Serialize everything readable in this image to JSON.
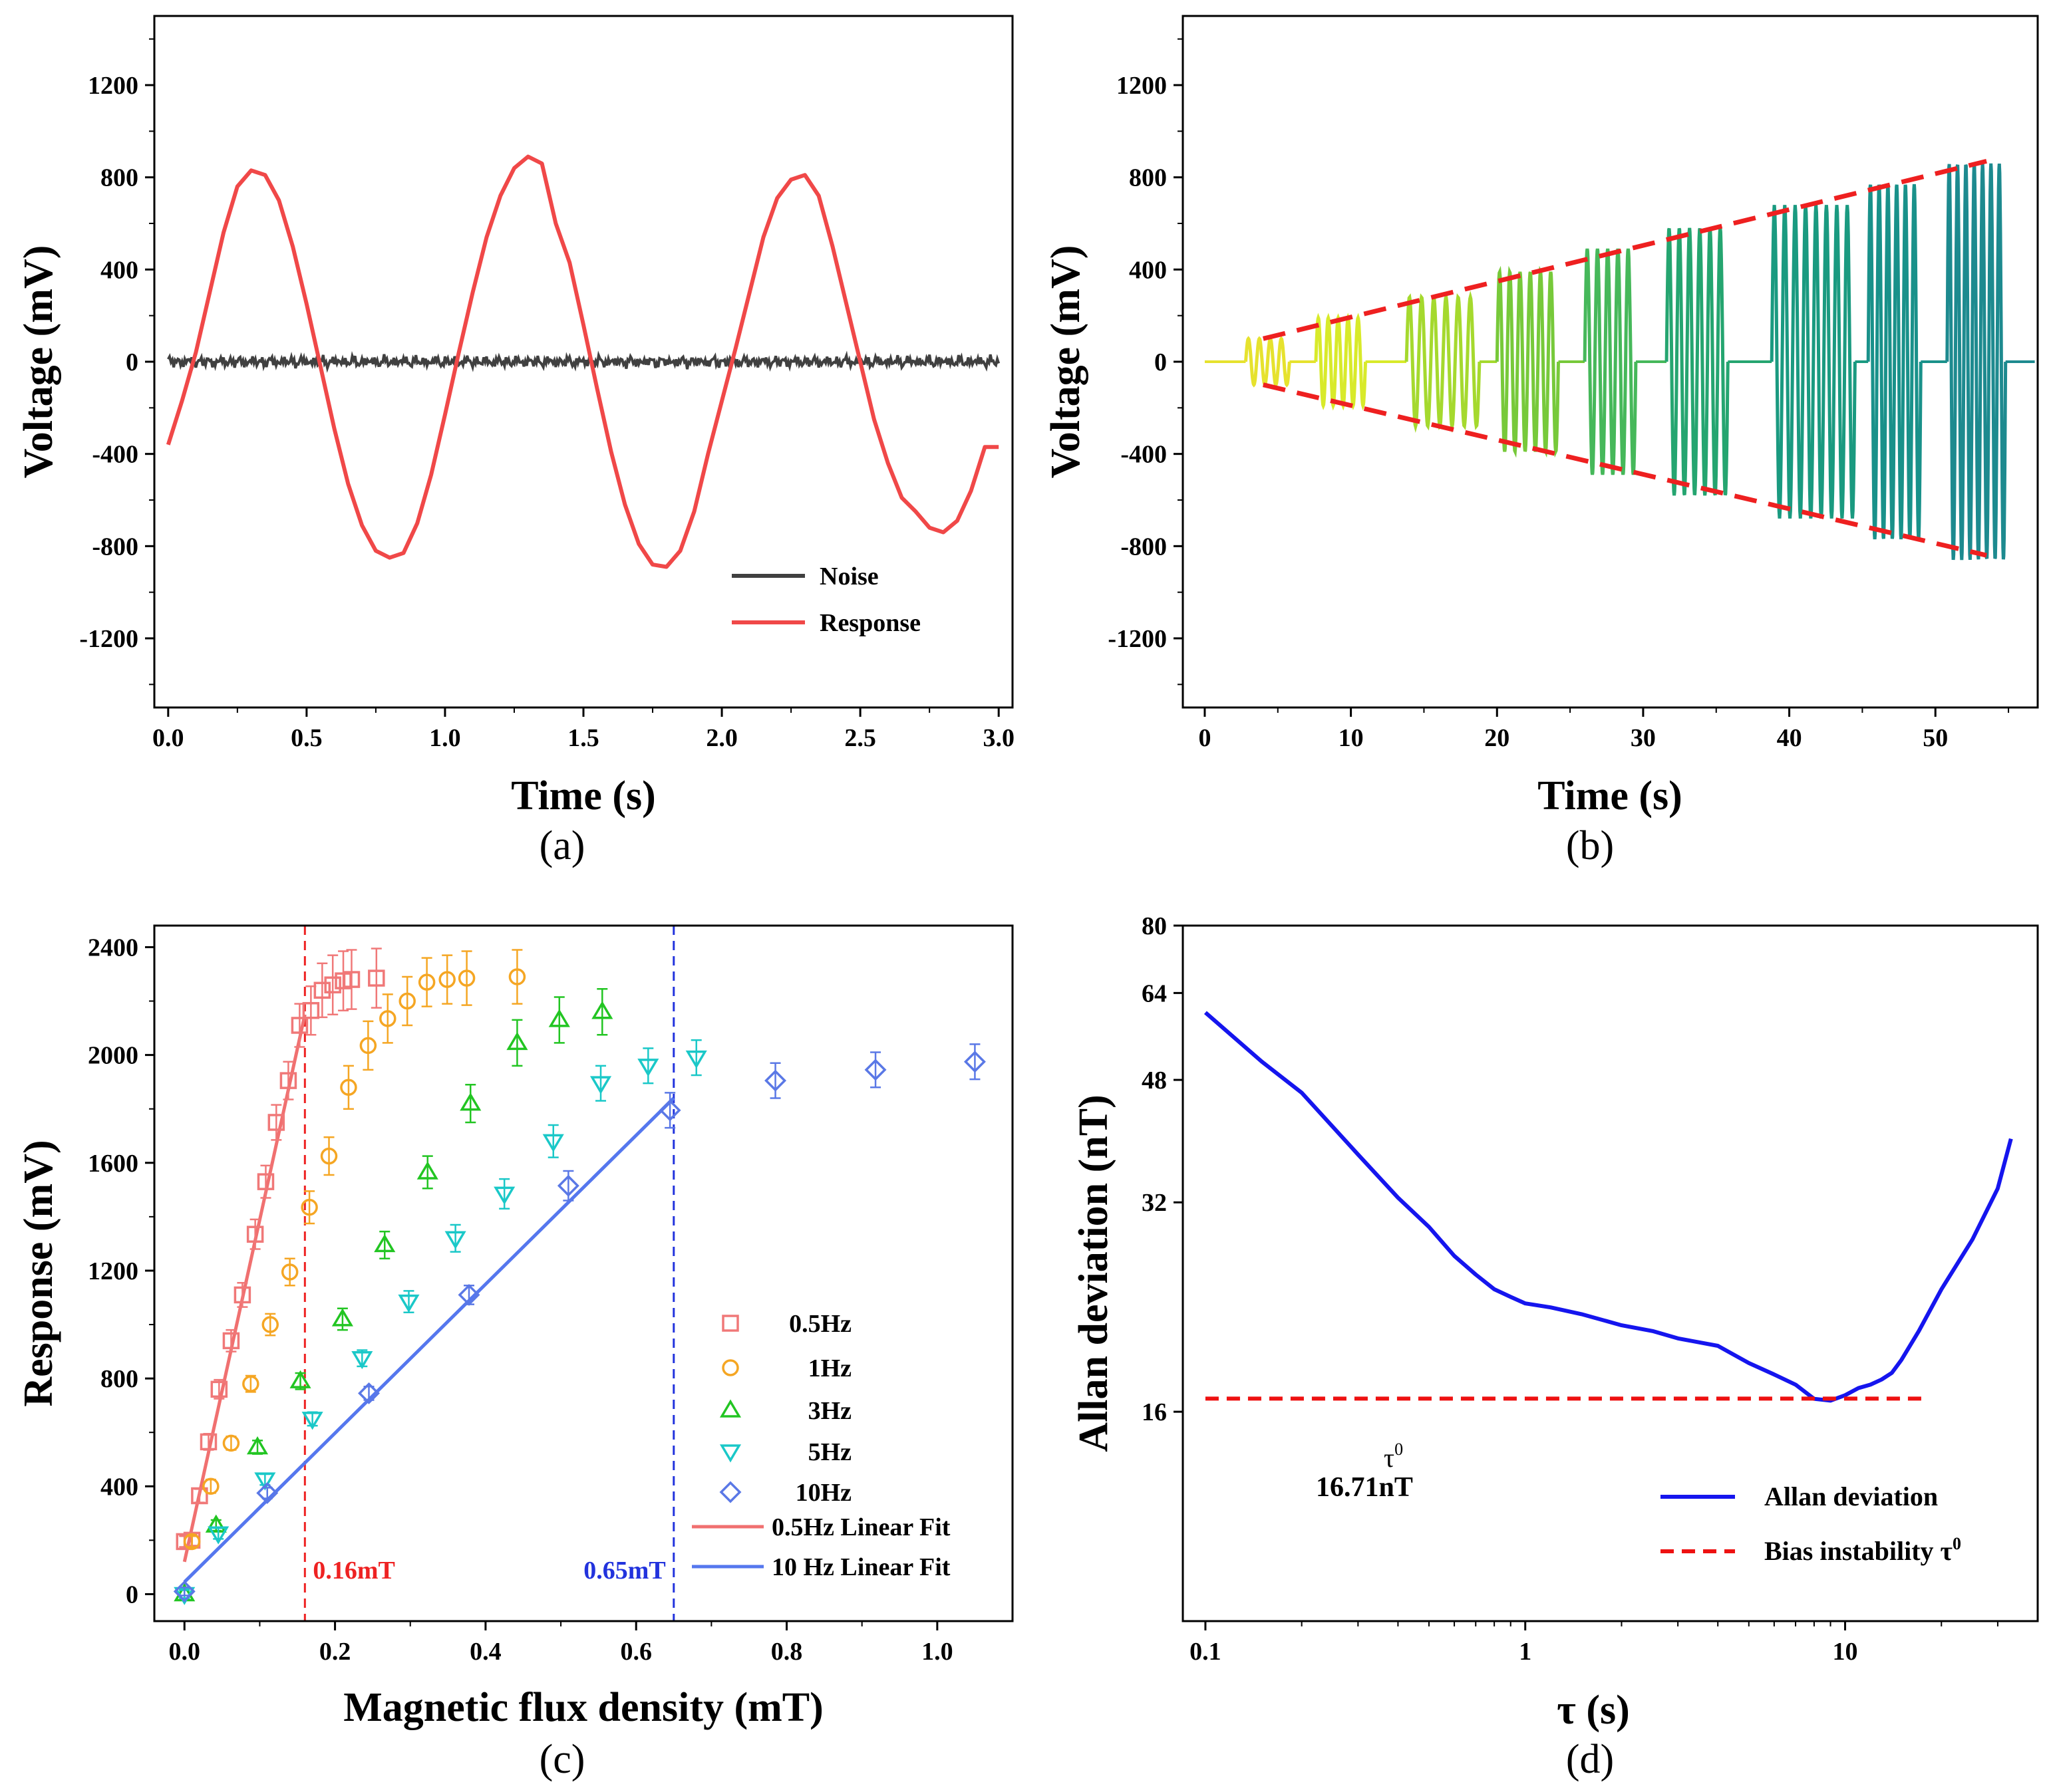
{
  "chart_data": [
    {
      "id": "a",
      "type": "line",
      "panel_label": "(a)",
      "xlabel": "Time (s)",
      "ylabel": "Voltage (mV)",
      "xlim": [
        -0.05,
        3.05
      ],
      "ylim": [
        -1500,
        1500
      ],
      "xticks": [
        0.0,
        0.5,
        1.0,
        1.5,
        2.0,
        2.5,
        3.0
      ],
      "xtick_labels": [
        "0.0",
        "0.5",
        "1.0",
        "1.5",
        "2.0",
        "2.5",
        "3.0"
      ],
      "yticks": [
        -1200,
        -800,
        -400,
        0,
        400,
        800,
        1200
      ],
      "ytick_labels": [
        "-1200",
        "-800",
        "-400",
        "0",
        "400",
        "800",
        "1200"
      ],
      "series": [
        {
          "name": "Noise",
          "color": "#404040",
          "kind": "noise",
          "amplitude_mV": 25
        },
        {
          "name": "Response",
          "color": "#f04848",
          "x": [
            0.0,
            0.05,
            0.1,
            0.15,
            0.2,
            0.25,
            0.3,
            0.35,
            0.4,
            0.45,
            0.5,
            0.55,
            0.6,
            0.65,
            0.7,
            0.75,
            0.8,
            0.85,
            0.9,
            0.95,
            1.0,
            1.05,
            1.1,
            1.15,
            1.2,
            1.25,
            1.3,
            1.35,
            1.4,
            1.45,
            1.5,
            1.55,
            1.6,
            1.65,
            1.7,
            1.75,
            1.8,
            1.85,
            1.9,
            1.95,
            2.0,
            2.05,
            2.1,
            2.15,
            2.2,
            2.25,
            2.3,
            2.35,
            2.4,
            2.45,
            2.5,
            2.55,
            2.6,
            2.65,
            2.7,
            2.75,
            2.8,
            2.85,
            2.9,
            2.95,
            3.0
          ],
          "y": [
            -360,
            -170,
            40,
            300,
            560,
            760,
            830,
            810,
            700,
            500,
            250,
            -20,
            -290,
            -530,
            -710,
            -820,
            -850,
            -830,
            -700,
            -490,
            -230,
            40,
            300,
            540,
            720,
            840,
            890,
            860,
            600,
            430,
            160,
            -120,
            -390,
            -620,
            -790,
            -880,
            -890,
            -820,
            -650,
            -400,
            -170,
            60,
            300,
            540,
            710,
            790,
            810,
            720,
            500,
            250,
            0,
            -250,
            -440,
            -590,
            -650,
            -720,
            -740,
            -690,
            -560,
            -370,
            -370
          ]
        }
      ],
      "legend": {
        "position": "bottom-right",
        "entries": [
          "Noise",
          "Response"
        ]
      }
    },
    {
      "id": "b",
      "type": "line",
      "panel_label": "(b)",
      "xlabel": "Time (s)",
      "ylabel": "Voltage (mV)",
      "xlim": [
        -1.5,
        57
      ],
      "ylim": [
        -1500,
        1500
      ],
      "xticks": [
        0,
        10,
        20,
        30,
        40,
        50
      ],
      "xtick_labels": [
        "0",
        "10",
        "20",
        "30",
        "40",
        "50"
      ],
      "yticks": [
        -1200,
        -800,
        -400,
        0,
        400,
        800,
        1200
      ],
      "ytick_labels": [
        "-1200",
        "-800",
        "-400",
        "0",
        "400",
        "800",
        "1200"
      ],
      "bursts": [
        {
          "start": 2.8,
          "end": 5.8,
          "amplitude": 100,
          "cycles": 4,
          "color": "#e6e22e"
        },
        {
          "start": 7.6,
          "end": 11.0,
          "amplitude": 190,
          "cycles": 5,
          "color": "#d8ea2a"
        },
        {
          "start": 13.8,
          "end": 18.8,
          "amplitude": 280,
          "cycles": 6,
          "color": "#a5d92e"
        },
        {
          "start": 20.0,
          "end": 24.2,
          "amplitude": 390,
          "cycles": 6,
          "color": "#77c93a"
        },
        {
          "start": 26.0,
          "end": 29.5,
          "amplitude": 490,
          "cycles": 5,
          "color": "#46b85a"
        },
        {
          "start": 31.6,
          "end": 35.8,
          "amplitude": 580,
          "cycles": 6,
          "color": "#25a570"
        },
        {
          "start": 38.8,
          "end": 44.5,
          "amplitude": 680,
          "cycles": 8,
          "color": "#1a9a80"
        },
        {
          "start": 45.4,
          "end": 49.0,
          "amplitude": 770,
          "cycles": 6,
          "color": "#19918a"
        },
        {
          "start": 50.8,
          "end": 54.8,
          "amplitude": 860,
          "cycles": 7,
          "color": "#1d8a8f"
        }
      ],
      "envelope": {
        "color": "#ee2020",
        "x": [
          4.0,
          53.5
        ],
        "upper": [
          100,
          870
        ],
        "lower": [
          -100,
          -840
        ]
      }
    },
    {
      "id": "c",
      "type": "scatter",
      "panel_label": "(c)",
      "xlabel": "Magnetic flux density (mT)",
      "ylabel": "Response (mV)",
      "xlim": [
        -0.04,
        1.1
      ],
      "ylim": [
        -100,
        2480
      ],
      "xticks": [
        0.0,
        0.2,
        0.4,
        0.6,
        0.8,
        1.0
      ],
      "xtick_labels": [
        "0.0",
        "0.2",
        "0.4",
        "0.6",
        "0.8",
        "1.0"
      ],
      "yticks": [
        0,
        400,
        800,
        1200,
        1600,
        2000,
        2400
      ],
      "ytick_labels": [
        "0",
        "400",
        "800",
        "1200",
        "1600",
        "2000",
        "2400"
      ],
      "series": [
        {
          "name": "0.5Hz",
          "marker": "square",
          "color": "#f07878",
          "x": [
            0.0,
            0.01,
            0.02,
            0.032,
            0.046,
            0.062,
            0.077,
            0.094,
            0.108,
            0.122,
            0.138,
            0.153,
            0.168,
            0.183,
            0.197,
            0.211,
            0.222,
            0.255
          ],
          "y": [
            195,
            200,
            365,
            565,
            760,
            940,
            1110,
            1335,
            1530,
            1750,
            1905,
            2110,
            2165,
            2240,
            2260,
            2275,
            2280,
            2285
          ],
          "err": [
            20,
            20,
            25,
            30,
            35,
            40,
            45,
            55,
            60,
            65,
            70,
            80,
            90,
            100,
            110,
            110,
            110,
            110
          ]
        },
        {
          "name": "1Hz",
          "marker": "circle",
          "color": "#f5a623",
          "x": [
            0.01,
            0.035,
            0.062,
            0.088,
            0.114,
            0.14,
            0.166,
            0.192,
            0.218,
            0.244,
            0.27,
            0.296,
            0.322,
            0.349,
            0.375,
            0.442
          ],
          "y": [
            195,
            400,
            560,
            780,
            1000,
            1195,
            1435,
            1625,
            1880,
            2035,
            2135,
            2200,
            2270,
            2280,
            2285,
            2290
          ],
          "err": [
            20,
            25,
            25,
            30,
            40,
            50,
            60,
            70,
            80,
            90,
            90,
            90,
            90,
            90,
            100,
            100
          ]
        },
        {
          "name": "3Hz",
          "marker": "triangle-up",
          "color": "#22c522",
          "x": [
            0.0,
            0.042,
            0.097,
            0.154,
            0.21,
            0.266,
            0.323,
            0.38,
            0.442,
            0.498,
            0.555
          ],
          "y": [
            0,
            255,
            545,
            790,
            1020,
            1295,
            1565,
            1820,
            2045,
            2130,
            2160
          ],
          "err": [
            15,
            20,
            25,
            30,
            40,
            50,
            60,
            70,
            85,
            85,
            85
          ]
        },
        {
          "name": "5Hz",
          "marker": "triangle-down",
          "color": "#1ac8c8",
          "x": [
            0.0,
            0.045,
            0.107,
            0.17,
            0.236,
            0.298,
            0.36,
            0.425,
            0.49,
            0.553,
            0.616,
            0.68
          ],
          "y": [
            0,
            225,
            425,
            650,
            875,
            1085,
            1320,
            1485,
            1680,
            1895,
            1960,
            1990
          ],
          "err": [
            15,
            20,
            20,
            25,
            30,
            40,
            50,
            55,
            60,
            65,
            65,
            65
          ]
        },
        {
          "name": "10Hz",
          "marker": "diamond",
          "color": "#5a78e6",
          "x": [
            0.0,
            0.11,
            0.245,
            0.378,
            0.51,
            0.645,
            0.785,
            0.918,
            1.05
          ],
          "y": [
            10,
            375,
            745,
            1110,
            1515,
            1795,
            1905,
            1945,
            1975
          ],
          "err": [
            15,
            20,
            25,
            35,
            55,
            65,
            65,
            65,
            65
          ]
        }
      ],
      "fits": [
        {
          "name": "0.5Hz Linear Fit",
          "color": "#f07070",
          "x": [
            0.0,
            0.16
          ],
          "y": [
            120,
            2150
          ]
        },
        {
          "name": "10 Hz Linear Fit",
          "color": "#5577ee",
          "x": [
            0.0,
            0.65
          ],
          "y": [
            45,
            1840
          ]
        }
      ],
      "vlines": [
        {
          "x": 0.16,
          "color": "#ee2222",
          "label": "0.16mT"
        },
        {
          "x": 0.65,
          "color": "#2233dd",
          "label": "0.65mT"
        }
      ],
      "legend": {
        "position": "bottom-right",
        "entries": [
          "0.5Hz",
          "1Hz",
          "3Hz",
          "5Hz",
          "10Hz",
          "0.5Hz Linear Fit",
          "10 Hz Linear Fit"
        ]
      }
    },
    {
      "id": "d",
      "type": "line",
      "panel_label": "(d)",
      "xlabel": "τ (s)",
      "ylabel": "Allan deviation (nT)",
      "xscale": "log",
      "yscale": "log",
      "xlim": [
        0.085,
        40
      ],
      "ylim": [
        8,
        80
      ],
      "xticks": [
        0.1,
        1,
        10
      ],
      "xtick_labels": [
        "0.1",
        "1",
        "10"
      ],
      "yticks": [
        16,
        32,
        48,
        64,
        80
      ],
      "ytick_labels": [
        "16",
        "32",
        "48",
        "64",
        "80"
      ],
      "series": [
        {
          "name": "Allan deviation",
          "color": "#1515ee",
          "x": [
            0.1,
            0.15,
            0.2,
            0.3,
            0.4,
            0.5,
            0.6,
            0.7,
            0.8,
            0.9,
            1.0,
            1.2,
            1.5,
            2.0,
            2.5,
            3.0,
            4.0,
            5.0,
            6.0,
            7.0,
            8.0,
            9.0,
            10,
            11,
            12,
            13,
            14,
            15,
            17,
            20,
            25,
            30,
            33
          ],
          "y": [
            60,
            51,
            46,
            37.5,
            32.5,
            29.5,
            26.8,
            25.2,
            24.0,
            23.4,
            22.9,
            22.6,
            22.1,
            21.3,
            20.9,
            20.4,
            19.9,
            18.8,
            18.1,
            17.5,
            16.7,
            16.6,
            16.9,
            17.3,
            17.5,
            17.8,
            18.2,
            19.0,
            20.9,
            24.0,
            28.3,
            33.5,
            39.5
          ]
        },
        {
          "name": "Bias instability τ⁰",
          "color": "#ee1111",
          "x": [
            0.1,
            18
          ],
          "y": [
            16.71,
            16.71
          ]
        }
      ],
      "annotation": {
        "symbol": "τ",
        "superscript": "0",
        "value": "16.71nT"
      },
      "legend": {
        "position": "bottom-right",
        "entries": [
          "Allan deviation",
          "Bias instability τ"
        ],
        "superscript": "0"
      }
    }
  ]
}
